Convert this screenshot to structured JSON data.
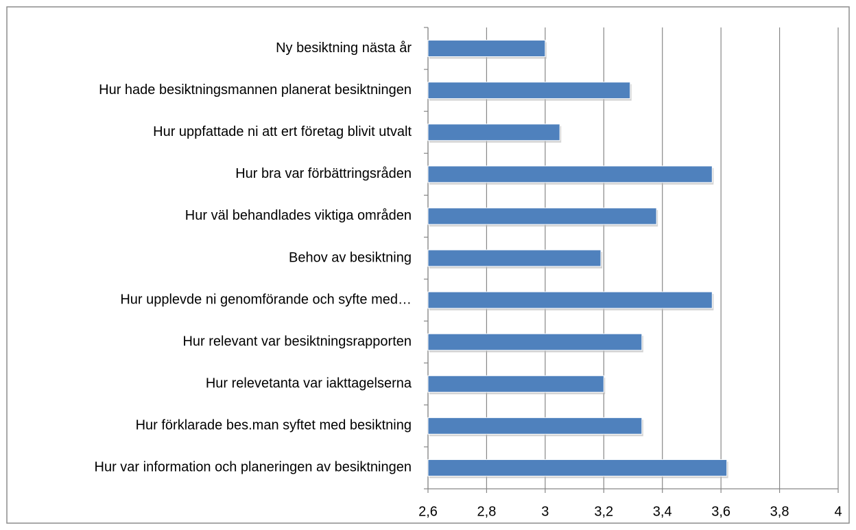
{
  "chart_data": {
    "type": "bar",
    "orientation": "horizontal",
    "categories": [
      "Ny besiktning nästa år",
      "Hur hade besiktningsmannen planerat besiktningen",
      "Hur uppfattade ni att ert företag blivit utvalt",
      "Hur bra var förbättringsråden",
      "Hur väl behandlades viktiga områden",
      "Behov av besiktning",
      "Hur upplevde ni genomförande och syfte med…",
      "Hur relevant var besiktningsrapporten",
      "Hur relevetanta var iakttagelserna",
      "Hur förklarade bes.man syftet med besiktning",
      "Hur var information och planeringen av besiktningen"
    ],
    "values": [
      3.0,
      3.29,
      3.05,
      3.57,
      3.38,
      3.19,
      3.57,
      3.33,
      3.2,
      3.33,
      3.62
    ],
    "color": "#4f81bd",
    "xlim": [
      2.6,
      4
    ],
    "xticks": [
      {
        "value": 2.6,
        "label": "2,6"
      },
      {
        "value": 2.8,
        "label": "2,8"
      },
      3,
      {
        "value": 3.2,
        "label": "3,2"
      },
      {
        "value": 3.4,
        "label": "3,4"
      },
      {
        "value": 3.6,
        "label": "3,6"
      },
      {
        "value": 3.8,
        "label": "3,8"
      },
      4
    ],
    "grid": true
  }
}
